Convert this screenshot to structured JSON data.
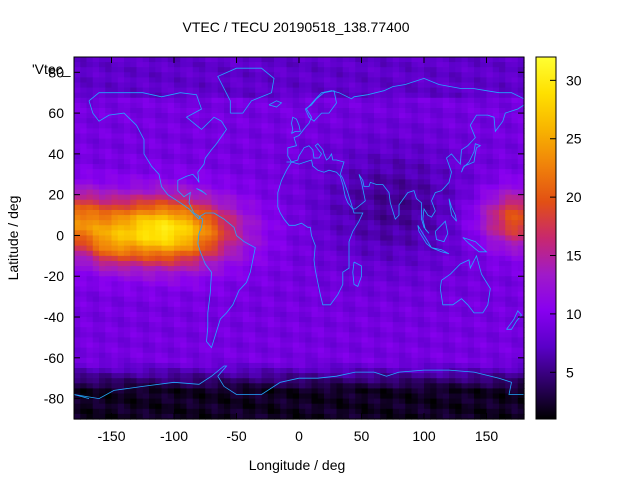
{
  "chart_data": {
    "type": "heatmap",
    "title": "VTEC / TECU 20190518_138.77400",
    "xlabel": "Longitude / deg",
    "ylabel": "Latitude / deg",
    "legend_label": "'Vtec_",
    "xlim": [
      -180,
      180
    ],
    "ylim": [
      -90,
      87.5
    ],
    "x_ticks": [
      -150,
      -100,
      -50,
      0,
      50,
      100,
      150
    ],
    "y_ticks": [
      -80,
      -60,
      -40,
      -20,
      0,
      20,
      40,
      60,
      80
    ],
    "colorbar": {
      "min": 1,
      "max": 32,
      "ticks": [
        5,
        10,
        15,
        20,
        25,
        30
      ],
      "palette": [
        "#000000",
        "#2e0066",
        "#5a00c8",
        "#8800f0",
        "#a01ac8",
        "#c8286e",
        "#e25014",
        "#f0820a",
        "#f8b400",
        "#ffe000",
        "#ffff33"
      ]
    },
    "field_features": {
      "background_tecu": 9,
      "equatorial_anomaly_peak_tecu": 30,
      "equatorial_anomaly_center": [
        -110,
        2
      ],
      "secondary_peak_center": [
        -185,
        8
      ],
      "polar_low_tecu": 2
    },
    "overlay": "coastlines"
  }
}
